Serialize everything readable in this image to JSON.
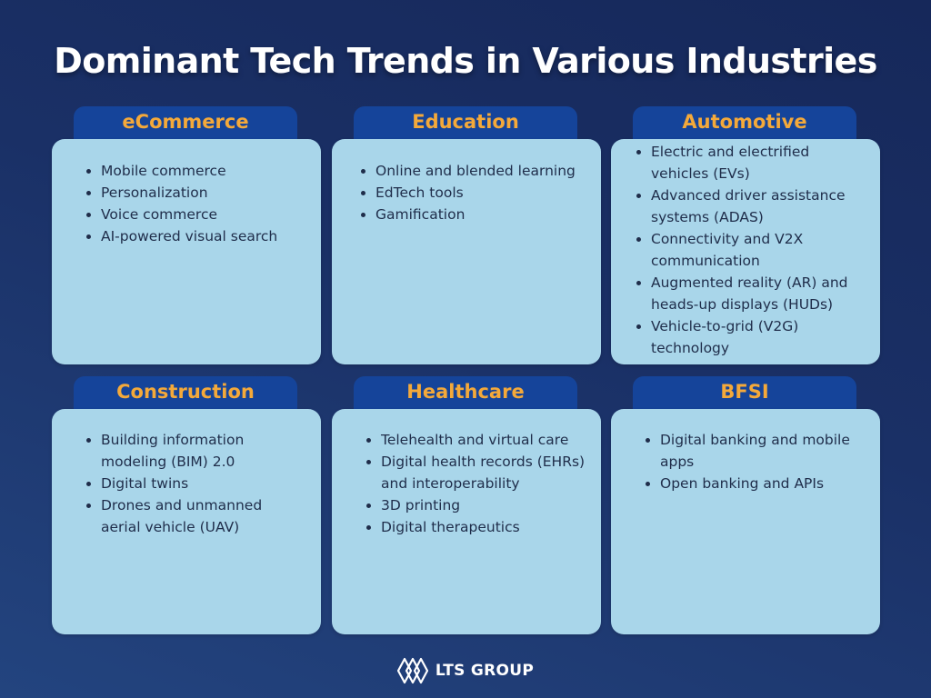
{
  "title": "Dominant Tech Trends in Various Industries",
  "colors": {
    "background": "#1a3066",
    "tab": "#15449a",
    "tab_text": "#f4a93a",
    "card": "#a9d6ea",
    "card_text": "#1f2d4a"
  },
  "industries": [
    {
      "name": "eCommerce",
      "trends": [
        "Mobile commerce",
        "Personalization",
        "Voice commerce",
        "AI-powered visual search"
      ]
    },
    {
      "name": "Education",
      "trends": [
        "Online and blended learning",
        "EdTech tools",
        "Gamification"
      ]
    },
    {
      "name": "Automotive",
      "trends": [
        "Electric and electrified vehicles (EVs)",
        "Advanced driver assistance systems (ADAS)",
        "Connectivity and V2X communication",
        "Augmented reality (AR) and heads-up displays (HUDs)",
        "Vehicle-to-grid (V2G) technology"
      ]
    },
    {
      "name": "Construction",
      "trends": [
        "Building information modeling (BIM) 2.0",
        "Digital twins",
        "Drones and unmanned aerial vehicle (UAV)"
      ]
    },
    {
      "name": "Healthcare",
      "trends": [
        "Telehealth and virtual care",
        "Digital health records (EHRs) and interoperability",
        "3D printing",
        "Digital therapeutics"
      ]
    },
    {
      "name": "BFSI",
      "trends": [
        "Digital banking and mobile apps",
        "Open banking and APIs"
      ]
    }
  ],
  "footer": {
    "logo_icon": "lts-logo-icon",
    "logo_text": "LTS GROUP"
  }
}
